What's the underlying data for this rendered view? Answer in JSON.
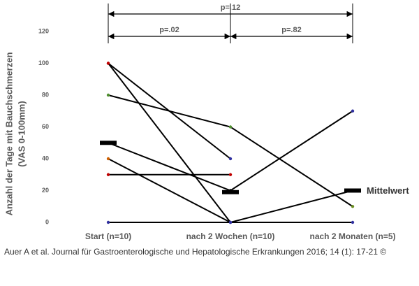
{
  "chart_data": {
    "type": "line",
    "categories": [
      "Start (n=10)",
      "nach 2 Wochen (n=10)",
      "nach 2 Monaten (n=5)"
    ],
    "ylabel": [
      "Anzahl der Tage mit Bauchschmerzen",
      "(VAS 0-100mm)"
    ],
    "ylim": [
      0,
      120
    ],
    "yticks": [
      0,
      20,
      40,
      60,
      80,
      100,
      120
    ],
    "line_color": "#000000",
    "series": [
      {
        "values": [
          100,
          40,
          null
        ],
        "point_colors": [
          "#c00000",
          "#3030a0",
          null
        ]
      },
      {
        "values": [
          100,
          0,
          20
        ],
        "point_colors": [
          "#c00000",
          "#3030a0",
          "#000000"
        ]
      },
      {
        "values": [
          80,
          60,
          10
        ],
        "point_colors": [
          "#4f8f2f",
          "#4f8f2f",
          "#6b8e23"
        ]
      },
      {
        "values": [
          50,
          20,
          70
        ],
        "point_colors": [
          "#000000",
          "#000000",
          "#3030a0"
        ]
      },
      {
        "values": [
          40,
          0,
          null
        ],
        "point_colors": [
          "#d06000",
          "#3030a0",
          null
        ]
      },
      {
        "values": [
          30,
          30,
          null
        ],
        "point_colors": [
          "#c00000",
          "#c00000",
          null
        ]
      },
      {
        "values": [
          0,
          0,
          0
        ],
        "point_colors": [
          "#3030a0",
          "#3030a0",
          "#3030a0"
        ]
      }
    ],
    "means": [
      50,
      19,
      20
    ],
    "mean_label": "Mittelwert",
    "annotations": [
      "p=.12",
      "p=.02",
      "p=.82"
    ],
    "source": "Auer A et al. Journal für Gastroenterologische und Hepatologische Erkrankungen 2016; 14 (1): 17-21 ©"
  }
}
